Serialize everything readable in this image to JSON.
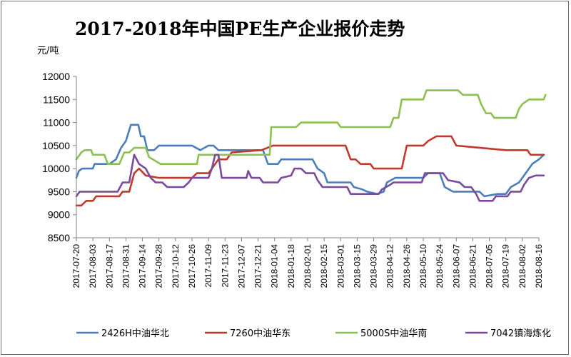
{
  "chart_data": {
    "type": "line",
    "title": "2017-2018年中国PE生产企业报价走势",
    "ylabel": "元/吨",
    "xlabel": "",
    "ylim": [
      8500,
      12000
    ],
    "yticks": [
      8500,
      9000,
      9500,
      10000,
      10500,
      11000,
      11500,
      12000
    ],
    "grid": false,
    "legend_position": "bottom",
    "x_tick_labels": [
      "2017-07-20",
      "2017-08-03",
      "2017-08-17",
      "2017-08-31",
      "2017-09-14",
      "2017-09-28",
      "2017-10-12",
      "2017-10-26",
      "2017-11-09",
      "2017-11-23",
      "2017-12-07",
      "2017-12-21",
      "2018-01-04",
      "2018-01-18",
      "2018-02-01",
      "2018-02-15",
      "2018-03-01",
      "2018-03-15",
      "2018-03-29",
      "2018-04-12",
      "2018-04-26",
      "2018-05-10",
      "2018-05-24",
      "2018-06-07",
      "2018-06-21",
      "2018-07-05",
      "2018-07-19",
      "2018-08-02",
      "2018-08-16"
    ],
    "series": [
      {
        "name": "2426H中油华北",
        "color": "#4a7ebb",
        "points": [
          [
            0,
            9800
          ],
          [
            0.15,
            9950
          ],
          [
            0.35,
            10000
          ],
          [
            1,
            10000
          ],
          [
            1.1,
            10100
          ],
          [
            2,
            10100
          ],
          [
            2.4,
            10200
          ],
          [
            2.7,
            10450
          ],
          [
            3,
            10600
          ],
          [
            3.3,
            10950
          ],
          [
            3.75,
            10950
          ],
          [
            3.9,
            10700
          ],
          [
            4.1,
            10700
          ],
          [
            4.3,
            10400
          ],
          [
            4.7,
            10400
          ],
          [
            5,
            10500
          ],
          [
            7,
            10500
          ],
          [
            7.5,
            10400
          ],
          [
            8,
            10500
          ],
          [
            8.3,
            10500
          ],
          [
            8.6,
            10400
          ],
          [
            11.3,
            10400
          ],
          [
            11.5,
            10200
          ],
          [
            11.6,
            10100
          ],
          [
            12.2,
            10100
          ],
          [
            12.4,
            10200
          ],
          [
            14.3,
            10200
          ],
          [
            14.6,
            10000
          ],
          [
            15,
            9900
          ],
          [
            15.2,
            9700
          ],
          [
            16.6,
            9700
          ],
          [
            16.8,
            9600
          ],
          [
            17.3,
            9550
          ],
          [
            17.6,
            9500
          ],
          [
            18.2,
            9450
          ],
          [
            18.6,
            9500
          ],
          [
            18.8,
            9700
          ],
          [
            19.3,
            9800
          ],
          [
            21,
            9800
          ],
          [
            21.3,
            9900
          ],
          [
            22,
            9900
          ],
          [
            22.3,
            9600
          ],
          [
            22.8,
            9500
          ],
          [
            24.4,
            9500
          ],
          [
            24.7,
            9400
          ],
          [
            25.5,
            9450
          ],
          [
            26,
            9450
          ],
          [
            26.3,
            9600
          ],
          [
            26.8,
            9700
          ],
          [
            27.2,
            9900
          ],
          [
            27.6,
            10100
          ],
          [
            28,
            10200
          ],
          [
            28.3,
            10300
          ]
        ]
      },
      {
        "name": "7260中油华东",
        "color": "#c0392b",
        "points": [
          [
            0,
            9200
          ],
          [
            0.3,
            9200
          ],
          [
            0.6,
            9300
          ],
          [
            1,
            9300
          ],
          [
            1.2,
            9400
          ],
          [
            2.6,
            9400
          ],
          [
            2.8,
            9500
          ],
          [
            3.2,
            9500
          ],
          [
            3.5,
            9900
          ],
          [
            3.8,
            10000
          ],
          [
            4.2,
            9850
          ],
          [
            5,
            9800
          ],
          [
            7,
            9800
          ],
          [
            7.3,
            9900
          ],
          [
            8,
            9900
          ],
          [
            8.2,
            10000
          ],
          [
            8.6,
            10200
          ],
          [
            9.1,
            10200
          ],
          [
            9.4,
            10350
          ],
          [
            11.2,
            10400
          ],
          [
            11.9,
            10500
          ],
          [
            16.3,
            10500
          ],
          [
            16.6,
            10200
          ],
          [
            16.9,
            10200
          ],
          [
            17.2,
            10100
          ],
          [
            17.8,
            10100
          ],
          [
            18,
            10000
          ],
          [
            19.7,
            10000
          ],
          [
            20,
            10500
          ],
          [
            21,
            10500
          ],
          [
            21.3,
            10600
          ],
          [
            21.8,
            10700
          ],
          [
            22.7,
            10700
          ],
          [
            23,
            10500
          ],
          [
            26,
            10400
          ],
          [
            27.3,
            10400
          ],
          [
            27.5,
            10300
          ],
          [
            28.3,
            10300
          ]
        ]
      },
      {
        "name": "5000S中油华南",
        "color": "#8cc152",
        "points": [
          [
            0,
            10200
          ],
          [
            0.3,
            10350
          ],
          [
            0.5,
            10400
          ],
          [
            0.9,
            10400
          ],
          [
            1,
            10300
          ],
          [
            1.7,
            10300
          ],
          [
            1.9,
            10100
          ],
          [
            2.6,
            10100
          ],
          [
            2.9,
            10350
          ],
          [
            3.2,
            10350
          ],
          [
            3.5,
            10450
          ],
          [
            4.2,
            10450
          ],
          [
            4.4,
            10250
          ],
          [
            5.1,
            10100
          ],
          [
            7.3,
            10100
          ],
          [
            7.4,
            10300
          ],
          [
            11.7,
            10300
          ],
          [
            11.8,
            10900
          ],
          [
            13.3,
            10900
          ],
          [
            13.6,
            11000
          ],
          [
            15.8,
            11000
          ],
          [
            16,
            10900
          ],
          [
            19,
            10900
          ],
          [
            19.2,
            11100
          ],
          [
            19.5,
            11100
          ],
          [
            19.7,
            11500
          ],
          [
            21,
            11500
          ],
          [
            21.2,
            11700
          ],
          [
            23.1,
            11700
          ],
          [
            23.4,
            11600
          ],
          [
            24.3,
            11600
          ],
          [
            24.5,
            11400
          ],
          [
            24.8,
            11200
          ],
          [
            25.1,
            11200
          ],
          [
            25.3,
            11100
          ],
          [
            26.6,
            11100
          ],
          [
            26.8,
            11300
          ],
          [
            27,
            11400
          ],
          [
            27.4,
            11500
          ],
          [
            28.3,
            11500
          ],
          [
            28.4,
            11600
          ]
        ]
      },
      {
        "name": "7042镇海炼化",
        "color": "#7b4a9c",
        "points": [
          [
            0,
            9400
          ],
          [
            0.2,
            9500
          ],
          [
            2.5,
            9500
          ],
          [
            2.8,
            9700
          ],
          [
            3.2,
            9700
          ],
          [
            3.5,
            10300
          ],
          [
            3.8,
            10100
          ],
          [
            4.2,
            10000
          ],
          [
            4.5,
            9800
          ],
          [
            4.8,
            9700
          ],
          [
            5.2,
            9700
          ],
          [
            5.5,
            9600
          ],
          [
            6.5,
            9600
          ],
          [
            6.8,
            9700
          ],
          [
            7,
            9800
          ],
          [
            8,
            9800
          ],
          [
            8.2,
            10000
          ],
          [
            8.4,
            10300
          ],
          [
            8.6,
            10300
          ],
          [
            8.8,
            9800
          ],
          [
            10.3,
            9800
          ],
          [
            10.4,
            9950
          ],
          [
            10.6,
            9800
          ],
          [
            11.1,
            9800
          ],
          [
            11.3,
            9700
          ],
          [
            12.2,
            9700
          ],
          [
            12.4,
            9800
          ],
          [
            13,
            9850
          ],
          [
            13.2,
            10000
          ],
          [
            13.6,
            10000
          ],
          [
            13.9,
            9900
          ],
          [
            14.4,
            9900
          ],
          [
            14.6,
            9750
          ],
          [
            14.9,
            9600
          ],
          [
            16.4,
            9600
          ],
          [
            16.6,
            9450
          ],
          [
            18.3,
            9450
          ],
          [
            18.5,
            9550
          ],
          [
            19,
            9650
          ],
          [
            19.2,
            9700
          ],
          [
            20.9,
            9700
          ],
          [
            21.1,
            9900
          ],
          [
            22.2,
            9900
          ],
          [
            22.5,
            9750
          ],
          [
            23.2,
            9700
          ],
          [
            23.5,
            9600
          ],
          [
            23.9,
            9600
          ],
          [
            24.2,
            9450
          ],
          [
            24.4,
            9300
          ],
          [
            25.2,
            9300
          ],
          [
            25.4,
            9400
          ],
          [
            26.1,
            9400
          ],
          [
            26.3,
            9500
          ],
          [
            26.9,
            9500
          ],
          [
            27.1,
            9650
          ],
          [
            27.4,
            9800
          ],
          [
            27.8,
            9850
          ],
          [
            28.3,
            9850
          ]
        ]
      }
    ]
  }
}
